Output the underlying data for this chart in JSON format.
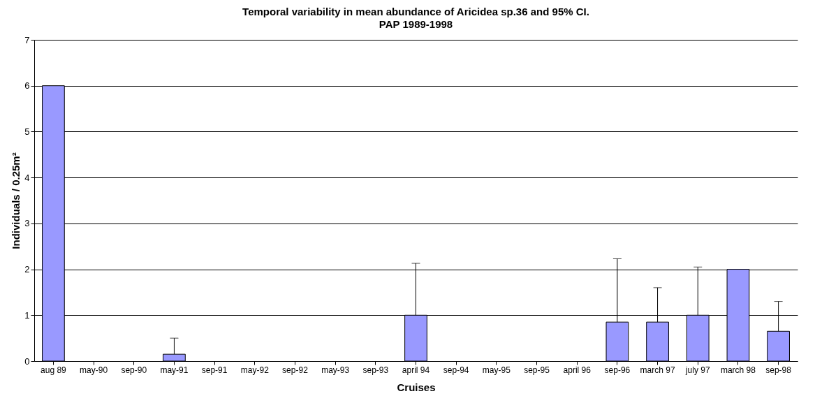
{
  "chart_data": {
    "type": "bar",
    "title": "Temporal variability in mean abundance of Aricidea sp.36 and 95% CI.",
    "subtitle": "PAP 1989-1998",
    "xlabel": "Cruises",
    "ylabel": "Individuals / 0.25m²",
    "categories": [
      "aug 89",
      "may-90",
      "sep-90",
      "may-91",
      "sep-91",
      "may-92",
      "sep-92",
      "may-93",
      "sep-93",
      "april 94",
      "sep-94",
      "may-95",
      "sep-95",
      "april 96",
      "sep-96",
      "march 97",
      "july 97",
      "march 98",
      "sep-98"
    ],
    "values": [
      6,
      0,
      0,
      0.15,
      0,
      0,
      0,
      0,
      0,
      1,
      0,
      0,
      0,
      0,
      0.85,
      0.85,
      1,
      2,
      0.65
    ],
    "errors": [
      null,
      null,
      null,
      [
        0.15,
        0.5
      ],
      null,
      null,
      null,
      null,
      null,
      [
        1,
        2.13
      ],
      null,
      null,
      null,
      null,
      [
        0.85,
        2.23
      ],
      [
        0.85,
        1.6
      ],
      [
        1,
        2.05
      ],
      null,
      [
        0.65,
        1.3
      ]
    ],
    "color": "#9999ff",
    "ylim": [
      0,
      7
    ],
    "yticks": [
      0,
      1,
      2,
      3,
      4,
      5,
      6,
      7
    ],
    "grid": "y"
  }
}
